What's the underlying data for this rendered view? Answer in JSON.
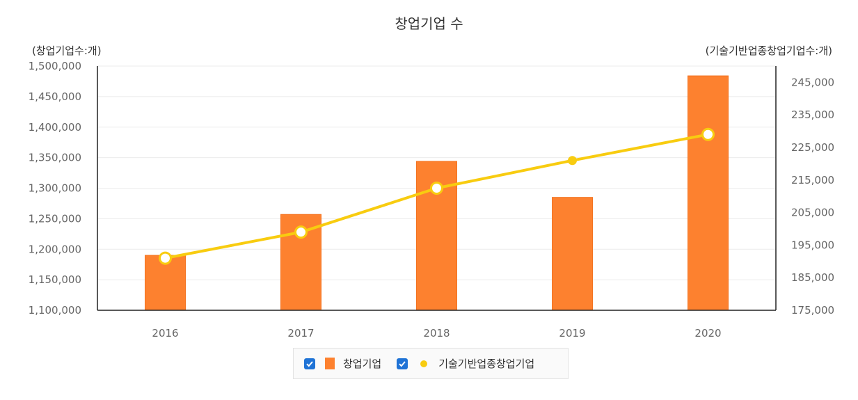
{
  "chart_data": {
    "type": "bar",
    "title": "창업기업 수",
    "categories": [
      "2016",
      "2017",
      "2018",
      "2019",
      "2020"
    ],
    "series": [
      {
        "name": "창업기업",
        "type": "bar",
        "axis": "left",
        "color": "#fd812f",
        "values": [
          1190000,
          1257000,
          1344000,
          1285000,
          1484000
        ]
      },
      {
        "name": "기술기반업종창업기업",
        "type": "line",
        "axis": "right",
        "color": "#f8cc10",
        "values": [
          191000,
          199000,
          212500,
          221000,
          229000
        ]
      }
    ],
    "y_left": {
      "label": "(창업기업수:개)",
      "min": 1100000,
      "max": 1500000,
      "ticks": [
        "1,100,000",
        "1,150,000",
        "1,200,000",
        "1,250,000",
        "1,300,000",
        "1,350,000",
        "1,400,000",
        "1,450,000",
        "1,500,000"
      ]
    },
    "y_right": {
      "label": "(기술기반업종창업기업수:개)",
      "min": 175000,
      "max": 250000,
      "tick_values": [
        175000,
        185000,
        195000,
        205000,
        215000,
        225000,
        235000,
        245000
      ],
      "ticks": [
        "175,000",
        "185,000",
        "195,000",
        "205,000",
        "215,000",
        "225,000",
        "235,000",
        "245,000"
      ]
    },
    "grid": true,
    "legend": "bottom-center"
  },
  "legend": {
    "checkbox_color": "#1f73d6",
    "items": [
      {
        "label": "창업기업",
        "checked": true
      },
      {
        "label": "기술기반업종창업기업",
        "checked": true
      }
    ]
  }
}
